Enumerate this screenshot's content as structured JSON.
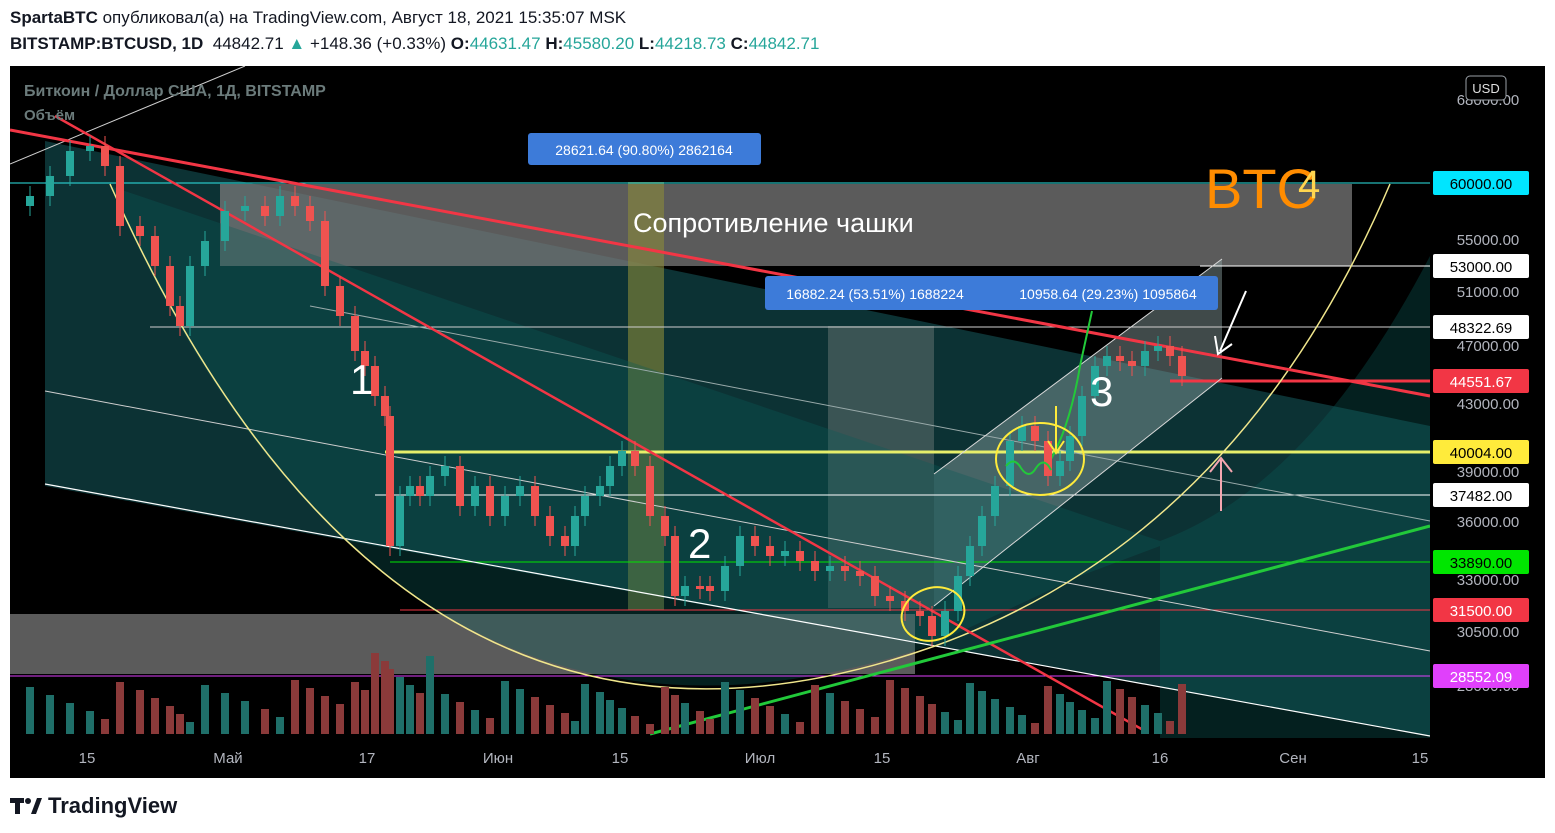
{
  "header": {
    "author": "SpartaBTC",
    "published_text": "опубликовал(а) на TradingView.com, Август 18, 2021 15:35:07 MSK",
    "symbol": "BITSTAMP:BTCUSD, 1D",
    "last": "44842.71",
    "change": "+148.36 (+0.33%)",
    "o_label": "O:",
    "o": "44631.47",
    "h_label": "H:",
    "h": "45580.20",
    "l_label": "L:",
    "l": "44218.73",
    "c_label": "C:",
    "c": "44842.71"
  },
  "chart": {
    "legend_title": "Биткоин / Доллар США, 1Д, BITSTAMP",
    "legend_sub": "Объём",
    "currency_button": "USD",
    "brand_label": "BTC",
    "brand_sup": "4",
    "resistance_label": "Сопротивление чашки",
    "measure_1": "28621.64 (90.80%) 2862164",
    "measure_2": "16882.24 (53.51%) 1688224",
    "measure_3": "10958.64 (29.23%) 1095864",
    "wave_1": "1",
    "wave_2": "2",
    "wave_3": "3",
    "price_ticks": [
      "68000.00",
      "55000.00",
      "51000.00",
      "47000.00",
      "43000.00",
      "39000.00",
      "36000.00",
      "33000.00",
      "30500.00",
      "28000.00"
    ],
    "price_tags": [
      {
        "value": "60000.00",
        "bg": "#00e5ff",
        "fg": "#000000"
      },
      {
        "value": "53000.00",
        "bg": "#ffffff",
        "fg": "#000000"
      },
      {
        "value": "48322.69",
        "bg": "#ffffff",
        "fg": "#000000"
      },
      {
        "value": "44551.67",
        "bg": "#f23645",
        "fg": "#ffffff"
      },
      {
        "value": "40004.00",
        "bg": "#ffeb3b",
        "fg": "#000000"
      },
      {
        "value": "37482.00",
        "bg": "#ffffff",
        "fg": "#000000"
      },
      {
        "value": "33890.00",
        "bg": "#00e600",
        "fg": "#000000"
      },
      {
        "value": "31500.00",
        "bg": "#f23645",
        "fg": "#ffffff"
      },
      {
        "value": "28552.09",
        "bg": "#e040fb",
        "fg": "#ffffff"
      }
    ],
    "time_ticks": [
      "15",
      "Май",
      "17",
      "Июн",
      "15",
      "Июл",
      "15",
      "Авг",
      "16",
      "Сен",
      "15"
    ]
  },
  "footer": {
    "brand": "TradingView"
  },
  "colors": {
    "bull": "#26a69a",
    "bear": "#ef5350",
    "trend_red": "#f23645",
    "trend_green": "#22c93a",
    "cup": "#f0e68c",
    "level_yellow": "#e6ee6a"
  }
}
